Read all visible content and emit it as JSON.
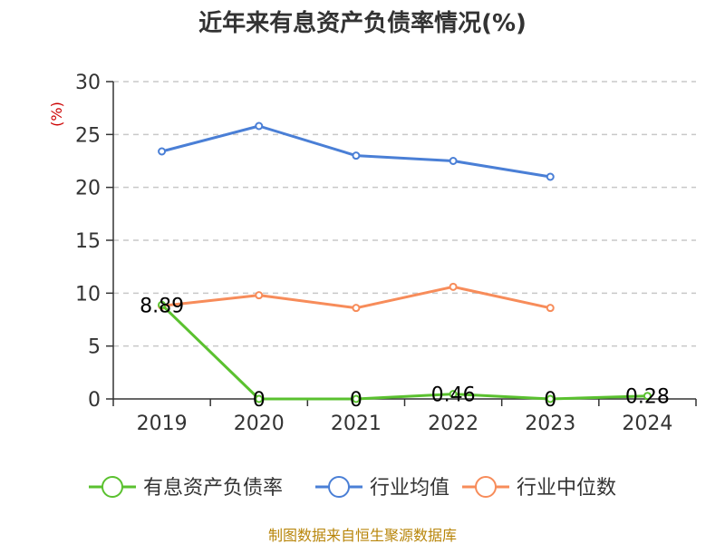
{
  "chart_data": {
    "type": "line",
    "title": "近年来有息资产负债率情况(%)",
    "unit_label": "(%)",
    "categories": [
      "2019",
      "2020",
      "2021",
      "2022",
      "2023",
      "2024"
    ],
    "y_ticks": [
      "0",
      "5",
      "10",
      "15",
      "20",
      "25",
      "30"
    ],
    "ylim": [
      0,
      30
    ],
    "grid": true,
    "legend_position": "bottom",
    "series": [
      {
        "name": "有息资产负债率",
        "color": "#5ac12f",
        "values": [
          8.89,
          0,
          0,
          0.46,
          0,
          0.28
        ],
        "labels": [
          "8.89",
          "0",
          "0",
          "0.46",
          "0",
          "0.28"
        ]
      },
      {
        "name": "行业均值",
        "color": "#4a7fd6",
        "values": [
          23.4,
          25.8,
          23.0,
          22.5,
          21.0,
          null
        ]
      },
      {
        "name": "行业中位数",
        "color": "#f78c5a",
        "values": [
          8.8,
          9.8,
          8.6,
          10.6,
          8.6,
          null
        ]
      }
    ]
  },
  "source": "制图数据来自恒生聚源数据库"
}
